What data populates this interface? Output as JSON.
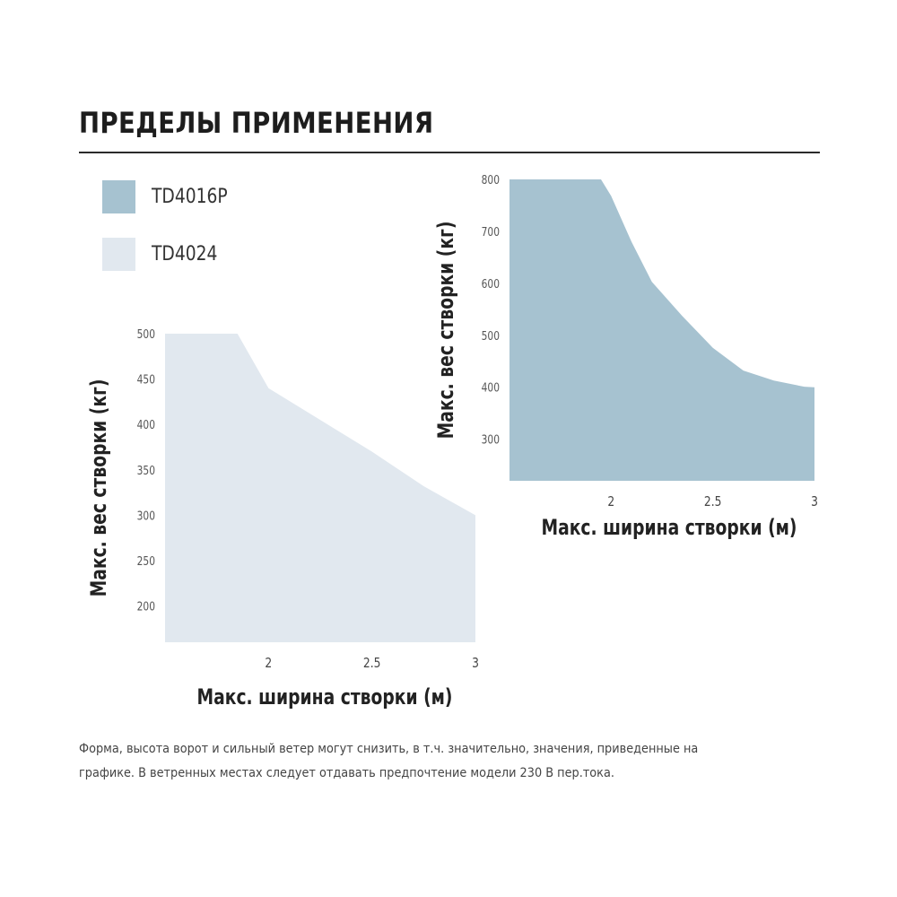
{
  "header": {
    "title": "ПРЕДЕЛЫ ПРИМЕНЕНИЯ"
  },
  "legend": [
    {
      "label": "TD4016P",
      "color": "#a6c2d0"
    },
    {
      "label": "TD4024",
      "color": "#e1e8ef"
    }
  ],
  "chart_data": [
    {
      "type": "area",
      "series": [
        {
          "name": "TD4024",
          "color": "#e1e8ef",
          "x": [
            1.5,
            1.85,
            2.0,
            2.25,
            2.5,
            2.75,
            3.0
          ],
          "y": [
            500,
            500,
            440,
            405,
            370,
            332,
            300
          ]
        }
      ],
      "xlabel": "Макс. ширина створки (м)",
      "ylabel": "Макс. вес створки (кг)",
      "xticks": [
        "2",
        "2.5",
        "3"
      ],
      "xtick_values": [
        2,
        2.5,
        3
      ],
      "yticks": [
        "500",
        "450",
        "400",
        "350",
        "300",
        "250",
        "200"
      ],
      "ytick_values": [
        500,
        450,
        400,
        350,
        300,
        250,
        200
      ],
      "xlim": [
        1.5,
        3.0
      ],
      "ylim": [
        160,
        500
      ],
      "grid": false
    },
    {
      "type": "area",
      "series": [
        {
          "name": "TD4016P",
          "color": "#a6c2d0",
          "x": [
            1.5,
            1.95,
            2.0,
            2.1,
            2.2,
            2.35,
            2.5,
            2.65,
            2.8,
            2.95,
            3.0
          ],
          "y": [
            800,
            800,
            768,
            680,
            603,
            537,
            476,
            432,
            413,
            401,
            400
          ]
        }
      ],
      "xlabel": "Макс. ширина створки (м)",
      "ylabel": "Макс. вес створки (кг)",
      "xticks": [
        "2",
        "2.5",
        "3"
      ],
      "xtick_values": [
        2,
        2.5,
        3
      ],
      "yticks": [
        "800",
        "700",
        "600",
        "500",
        "400",
        "300"
      ],
      "ytick_values": [
        800,
        700,
        600,
        500,
        400,
        300
      ],
      "xlim": [
        1.5,
        3.0
      ],
      "ylim": [
        220,
        800
      ],
      "grid": false
    }
  ],
  "footnote": {
    "line1": "Форма, высота ворот и сильный ветер могут снизить, в т.ч. значительно, значения, приведенные на",
    "line2": "графике. В ветренных местах следует отдавать предпочтение модели 230 В пер.тока."
  }
}
